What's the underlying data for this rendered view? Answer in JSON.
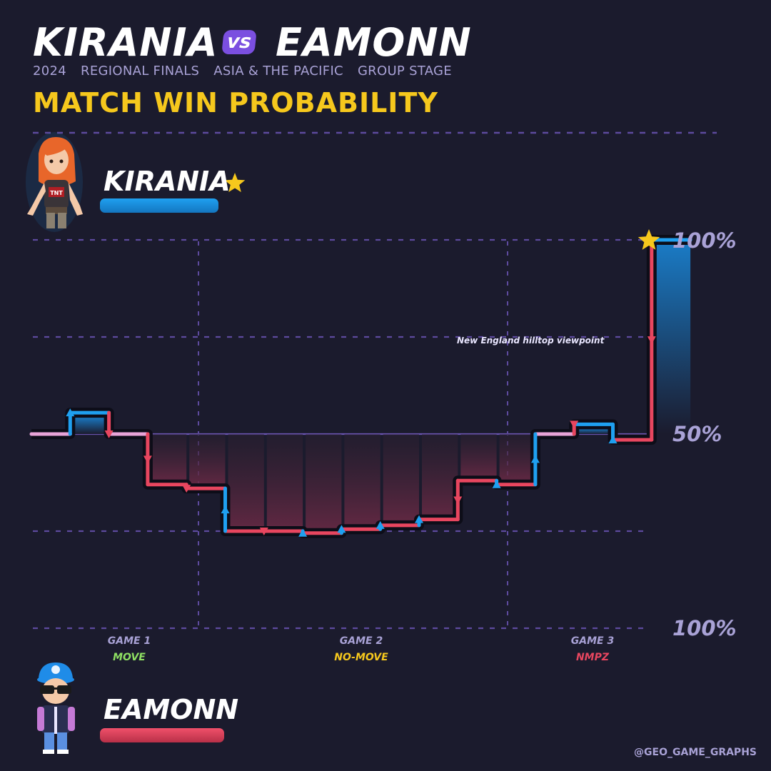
{
  "header": {
    "player_one": "KIRANIA",
    "vs_label": "vs",
    "player_two": "EAMONN",
    "subtitle": [
      "2024",
      "REGIONAL FINALS",
      "ASIA & THE PACIFIC",
      "GROUP STAGE"
    ],
    "headline": "MATCH WIN PROBABILITY"
  },
  "players": {
    "top": {
      "name": "KIRANIA",
      "winner": true,
      "color": "#1fa0f0"
    },
    "bottom": {
      "name": "EAMONN",
      "winner": false,
      "color": "#e8465f"
    }
  },
  "footer": {
    "watermark": "@GEO_GAME_GRAPHS"
  },
  "colors": {
    "background": "#1b1b2d",
    "kirania": "#1fa0f0",
    "eamonn": "#e8465f",
    "grid": "#5d4a9e",
    "highlight": "#f6c81d"
  },
  "chart_data": {
    "type": "line",
    "step": true,
    "y_tick_labels": [
      "100%",
      "50%",
      "100%"
    ],
    "y_range": [
      -100,
      100
    ],
    "y_ticks": [
      -50,
      50
    ],
    "y_meaning": "positive = KIRANIA favoured, negative = EAMONN favoured",
    "games": [
      {
        "label": "GAME 1",
        "mode": "MOVE",
        "mode_color": "#8fe063"
      },
      {
        "label": "GAME 2",
        "mode": "NO-MOVE",
        "mode_color": "#f6c81d"
      },
      {
        "label": "GAME 3",
        "mode": "NMPZ",
        "mode_color": "#e8465f"
      }
    ],
    "series": [
      {
        "values": [
          0,
          11,
          0,
          -26,
          -28,
          -50,
          -50,
          -51,
          -49,
          -47,
          -44,
          -24,
          -26,
          0,
          5,
          -3,
          100
        ]
      }
    ],
    "round_winners": [
      "kirania",
      "eamonn",
      "eamonn",
      "eamonn",
      "kirania",
      "eamonn",
      "kirania",
      "kirania",
      "kirania",
      "kirania",
      "eamonn",
      "kirania",
      "kirania",
      "eamonn",
      "kirania"
    ],
    "annotation": {
      "text": "New England hilltop viewpoint"
    }
  }
}
